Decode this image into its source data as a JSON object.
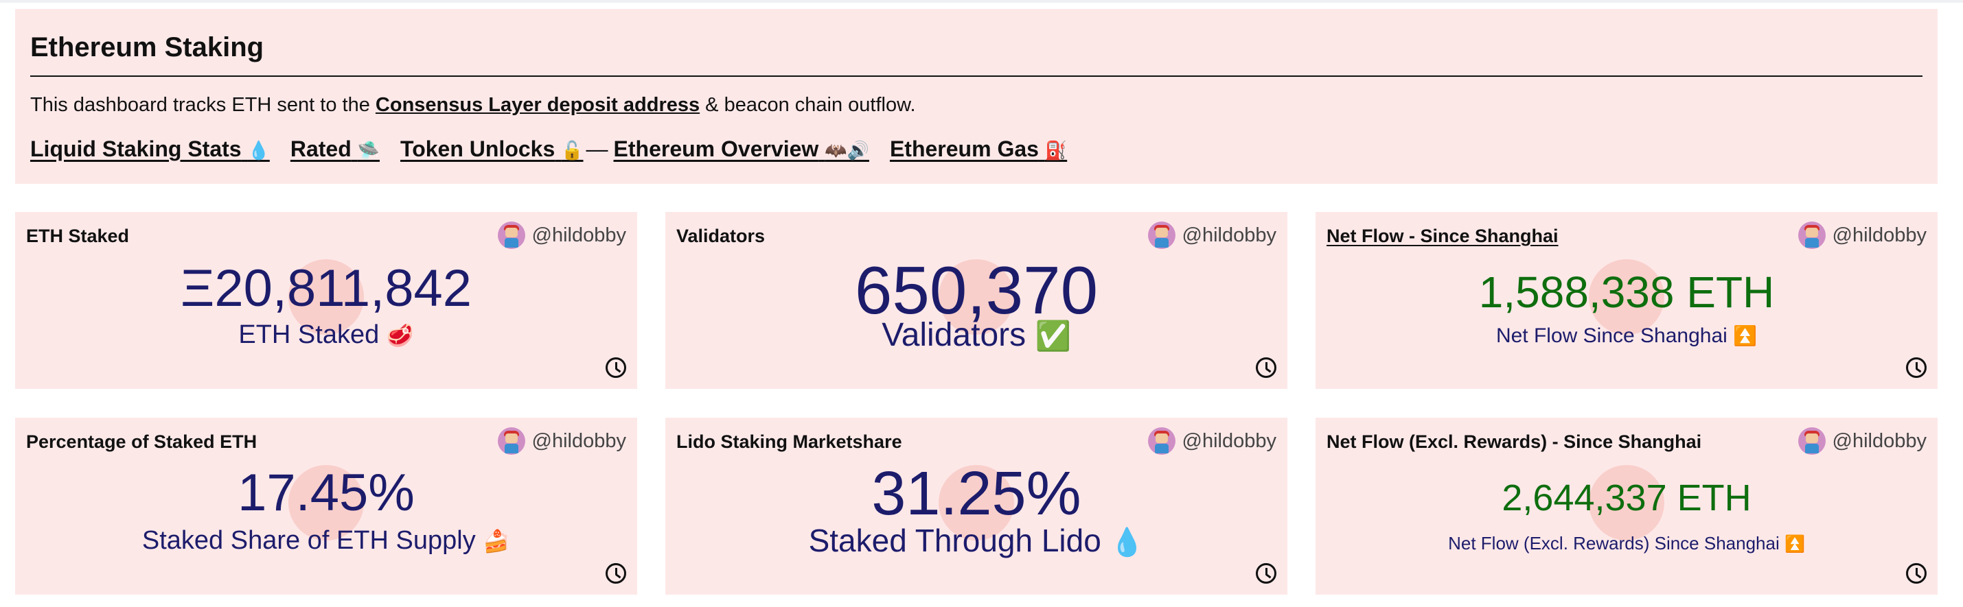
{
  "header": {
    "title": "Ethereum Staking",
    "desc_before": "This dashboard tracks ETH sent to the ",
    "desc_link": "Consensus Layer deposit address",
    "desc_after": " & beacon chain outflow.",
    "nav": [
      {
        "label": "Liquid Staking Stats",
        "emoji": "💧"
      },
      {
        "label": "Rated",
        "emoji": "🛸"
      },
      {
        "label": "Token Unlocks",
        "emoji": "🔓"
      },
      {
        "label": "Ethereum Overview",
        "emoji": "🦇🔊"
      },
      {
        "label": "Ethereum Gas",
        "emoji": "⛽"
      }
    ],
    "nav_dash": "—"
  },
  "cards": [
    {
      "title": "ETH Staked",
      "author": "@hildobby",
      "value": "Ξ20,811,842",
      "subtitle": "ETH Staked",
      "emoji": "🥩"
    },
    {
      "title": "Validators",
      "author": "@hildobby",
      "value": "650,370",
      "subtitle": "Validators",
      "emoji": "✅"
    },
    {
      "title": "Net Flow - Since Shanghai",
      "author": "@hildobby",
      "value": "1,588,338 ETH",
      "subtitle": "Net Flow Since Shanghai",
      "emoji": "⏫"
    },
    {
      "title": "Percentage of Staked ETH",
      "author": "@hildobby",
      "value": "17.45%",
      "subtitle": "Staked Share of ETH Supply",
      "emoji": "🍰"
    },
    {
      "title": "Lido Staking Marketshare",
      "author": "@hildobby",
      "value": "31.25%",
      "subtitle": "Staked Through Lido",
      "emoji": "💧"
    },
    {
      "title": "Net Flow (Excl. Rewards) - Since Shanghai",
      "author": "@hildobby",
      "value": "2,644,337 ETH",
      "subtitle": "Net Flow (Excl. Rewards) Since Shanghai",
      "emoji": "⏫"
    }
  ],
  "colors": {
    "card_bg": "#fde8e8",
    "value_navy": "#1c1c6b",
    "value_green": "#0e6e0e"
  },
  "icons": {
    "clock": "clock-icon",
    "avatar": "user-avatar"
  }
}
